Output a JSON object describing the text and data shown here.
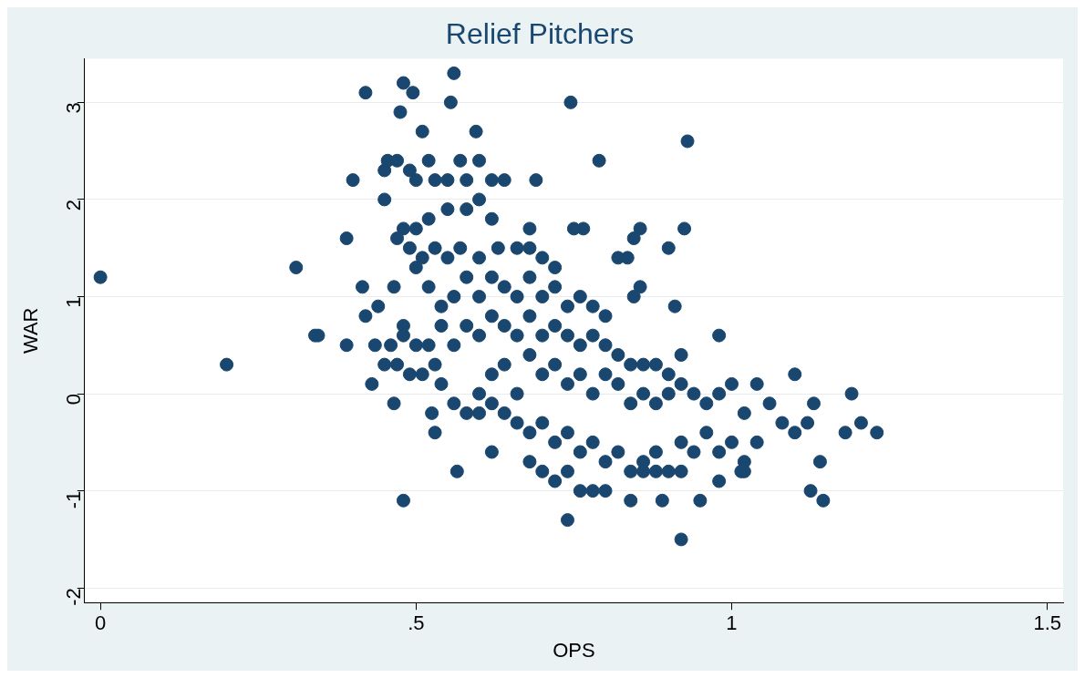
{
  "chart_data": {
    "type": "scatter",
    "title": "Relief Pitchers",
    "xlabel": "OPS",
    "ylabel": "WAR",
    "grid": "y",
    "legend": false,
    "marker": "circle",
    "xlim": [
      -0.025,
      1.525
    ],
    "ylim": [
      -2.15,
      3.45
    ],
    "xticks": [
      0,
      {
        "value": 0.5,
        "label": ".5"
      },
      1,
      1.5
    ],
    "yticks": [
      -2,
      -1,
      0,
      1,
      2,
      3
    ],
    "series": [
      {
        "color": "#1a476f",
        "x": [
          0,
          0.2,
          0.31,
          0.34,
          0.345,
          0.39,
          0.39,
          0.4,
          0.42,
          0.415,
          0.42,
          0.43,
          0.435,
          0.44,
          0.45,
          0.45,
          0.455,
          0.465,
          0.465,
          0.48,
          0.475,
          0.48,
          0.495,
          0.51,
          0.56,
          0.555,
          0.565,
          0.595,
          0.62,
          0.745,
          0.79,
          0.74,
          0.93,
          0.925,
          0.92,
          1.19,
          1.205,
          1.23,
          1.18,
          1.145,
          1.125,
          1.14,
          1.13,
          1.1,
          0.95,
          0.89,
          0.84,
          1.015,
          0.98,
          0.98,
          0.9,
          0.91,
          0.855,
          0.845,
          0.855,
          0.845,
          0.835,
          0.82,
          0.765,
          0.75,
          0.69,
          0.68,
          0.47,
          0.49,
          0.5,
          0.52,
          0.53,
          0.55,
          0.57,
          0.58,
          0.6,
          0.62,
          0.64,
          0.6,
          0.62,
          0.58,
          0.55,
          0.52,
          0.5,
          0.48,
          0.47,
          0.49,
          0.51,
          0.53,
          0.55,
          0.57,
          0.6,
          0.63,
          0.66,
          0.68,
          0.7,
          0.72,
          0.5,
          0.52,
          0.54,
          0.56,
          0.58,
          0.6,
          0.62,
          0.64,
          0.66,
          0.68,
          0.7,
          0.72,
          0.74,
          0.76,
          0.78,
          0.8,
          0.48,
          0.48,
          0.5,
          0.47,
          0.46,
          0.45,
          0.49,
          0.51,
          0.52,
          0.54,
          0.56,
          0.58,
          0.6,
          0.62,
          0.64,
          0.66,
          0.68,
          0.7,
          0.72,
          0.74,
          0.76,
          0.78,
          0.8,
          0.82,
          0.84,
          0.86,
          0.88,
          0.9,
          0.92,
          0.53,
          0.54,
          0.56,
          0.58,
          0.6,
          0.62,
          0.64,
          0.66,
          0.68,
          0.7,
          0.72,
          0.74,
          0.76,
          0.78,
          0.8,
          0.82,
          0.84,
          0.86,
          0.88,
          0.9,
          0.92,
          0.94,
          0.96,
          0.98,
          1.0,
          1.02,
          1.04,
          1.06,
          1.08,
          1.1,
          1.12,
          0.525,
          0.53,
          0.6,
          0.62,
          0.64,
          0.66,
          0.68,
          0.7,
          0.72,
          0.74,
          0.76,
          0.78,
          0.8,
          0.82,
          0.84,
          0.86,
          0.88,
          0.9,
          0.92,
          0.94,
          0.96,
          0.98,
          1.0,
          1.02,
          1.04,
          0.74,
          0.76,
          0.78,
          0.68,
          0.72,
          0.7,
          0.8,
          0.86,
          0.88,
          0.92,
          1.02
        ],
        "values": [
          1.2,
          0.3,
          1.3,
          0.6,
          0.6,
          0.5,
          1.6,
          2.2,
          3.1,
          1.1,
          0.8,
          0.1,
          0.5,
          0.9,
          2.0,
          2.3,
          2.4,
          -0.1,
          1.1,
          -1.1,
          2.9,
          3.2,
          3.1,
          2.7,
          3.3,
          3.0,
          -0.8,
          2.7,
          -0.6,
          3.0,
          2.4,
          -1.3,
          2.6,
          1.7,
          -1.5,
          0.0,
          -0.3,
          -0.4,
          -0.4,
          -1.1,
          -1.0,
          -0.7,
          -0.1,
          0.2,
          -1.1,
          -1.1,
          -1.1,
          -0.8,
          -0.9,
          0.6,
          1.5,
          0.9,
          1.7,
          1.6,
          1.1,
          1.0,
          1.4,
          1.4,
          1.7,
          1.7,
          2.2,
          1.7,
          2.4,
          2.3,
          2.2,
          2.4,
          2.2,
          2.2,
          2.4,
          2.2,
          2.4,
          2.2,
          2.2,
          2.0,
          1.8,
          1.9,
          1.9,
          1.8,
          1.7,
          1.7,
          1.6,
          1.5,
          1.4,
          1.5,
          1.4,
          1.5,
          1.4,
          1.5,
          1.5,
          1.5,
          1.4,
          1.3,
          1.3,
          1.1,
          0.9,
          1.0,
          1.2,
          1.0,
          1.2,
          1.1,
          1.0,
          1.2,
          1.0,
          1.1,
          0.9,
          1.0,
          0.9,
          0.8,
          0.7,
          0.6,
          0.5,
          0.3,
          0.5,
          0.3,
          0.2,
          0.2,
          0.5,
          0.7,
          0.5,
          0.7,
          0.6,
          0.8,
          0.7,
          0.6,
          0.8,
          0.6,
          0.7,
          0.6,
          0.5,
          0.6,
          0.5,
          0.4,
          0.3,
          0.3,
          0.3,
          0.2,
          0.4,
          0.3,
          0.1,
          -0.1,
          -0.2,
          0.0,
          0.2,
          0.3,
          0.0,
          0.4,
          0.2,
          0.3,
          0.1,
          0.2,
          0.0,
          0.2,
          0.1,
          -0.1,
          0.0,
          -0.1,
          0.0,
          0.1,
          0.0,
          -0.1,
          0.0,
          0.1,
          -0.2,
          0.1,
          -0.1,
          -0.3,
          -0.4,
          -0.3,
          -0.2,
          -0.4,
          -0.2,
          -0.1,
          -0.2,
          -0.3,
          -0.4,
          -0.3,
          -0.5,
          -0.4,
          -0.6,
          -0.5,
          -0.7,
          -0.6,
          -0.8,
          -0.7,
          -0.6,
          -0.8,
          -0.5,
          -0.6,
          -0.4,
          -0.6,
          -0.5,
          -0.7,
          -0.5,
          -0.8,
          -1.0,
          -1.0,
          -0.7,
          -0.9,
          -0.8,
          -1.0,
          -0.8,
          -0.8,
          -0.8,
          -0.8
        ]
      }
    ]
  }
}
